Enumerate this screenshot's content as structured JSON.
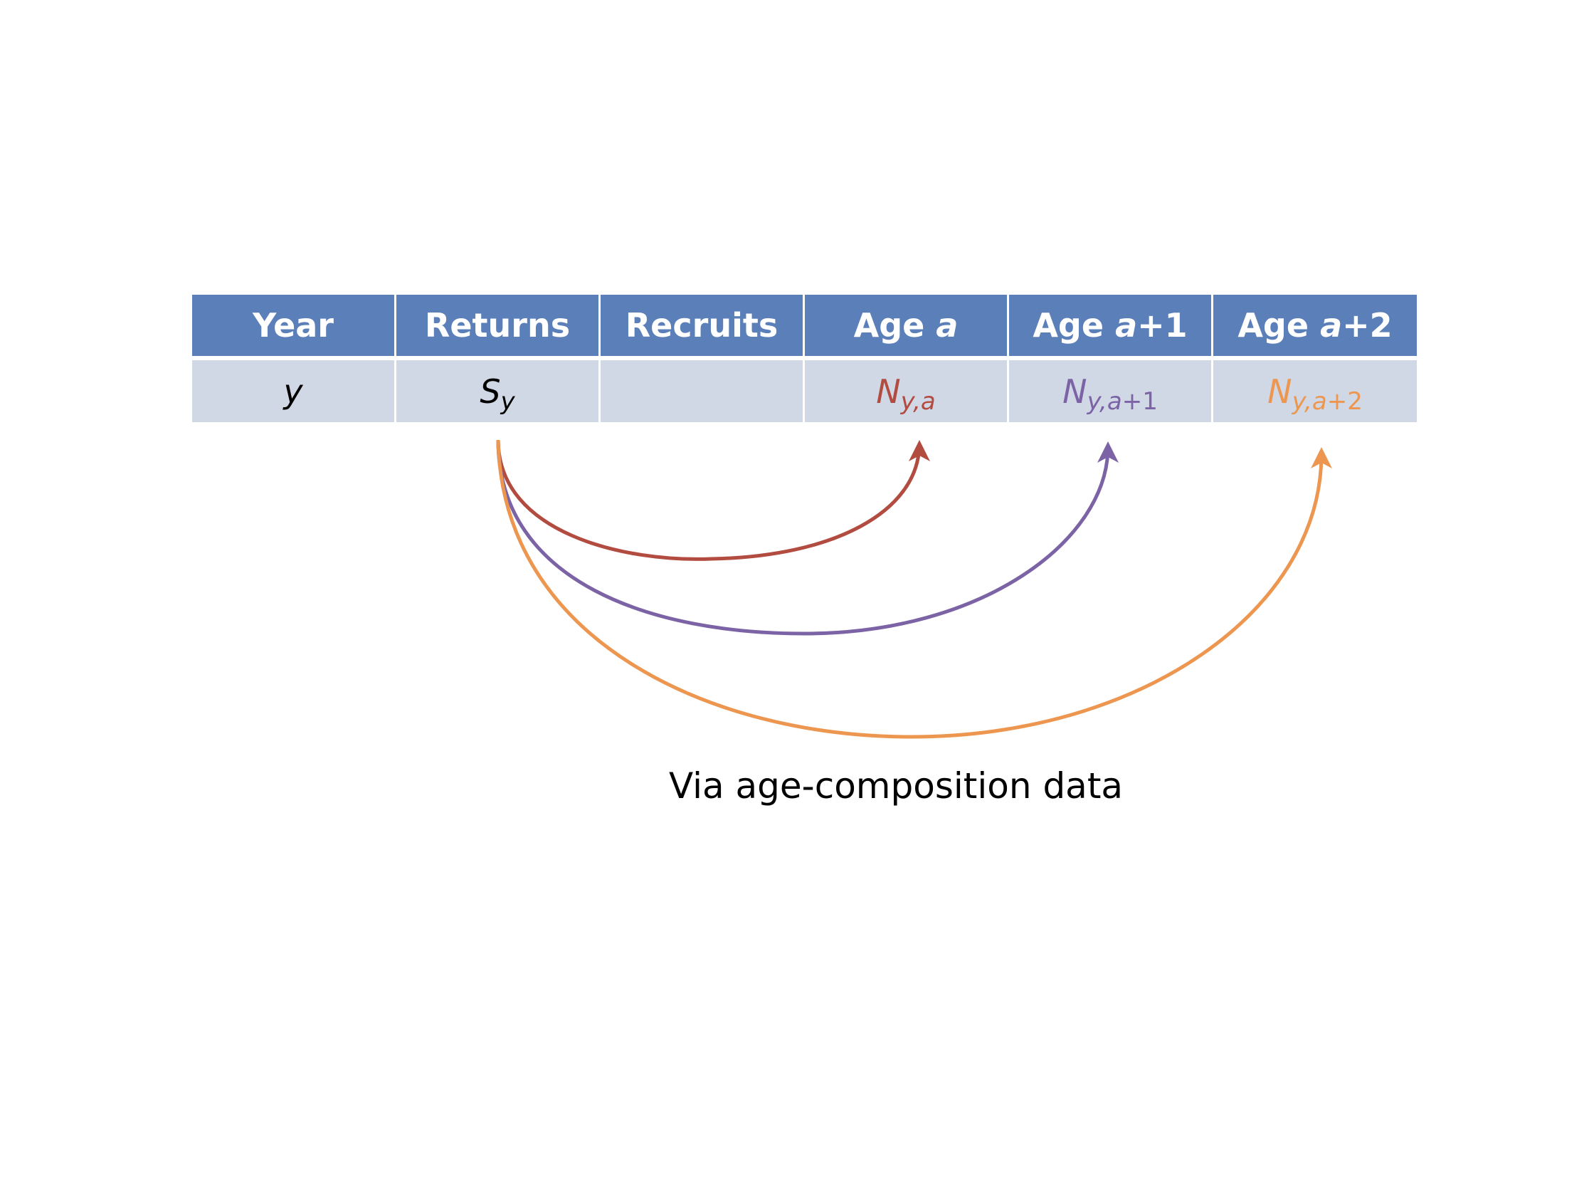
{
  "table": {
    "headers": [
      {
        "prefix": "Year",
        "var": "",
        "suffix": ""
      },
      {
        "prefix": "Returns",
        "var": "",
        "suffix": ""
      },
      {
        "prefix": "Recruits",
        "var": "",
        "suffix": ""
      },
      {
        "prefix": "Age ",
        "var": "a",
        "suffix": ""
      },
      {
        "prefix": "Age ",
        "var": "a",
        "suffix": "+1"
      },
      {
        "prefix": "Age ",
        "var": "a",
        "suffix": "+2"
      }
    ],
    "row": {
      "year": "y",
      "returns": {
        "base": "S",
        "sub": "y"
      },
      "recruits": "",
      "age_a": {
        "base": "N",
        "sub_var": "y,a",
        "sub_suffix": ""
      },
      "age_a1": {
        "base": "N",
        "sub_var": "y,a",
        "sub_suffix": "+1"
      },
      "age_a2": {
        "base": "N",
        "sub_var": "y,a",
        "sub_suffix": "+2"
      }
    }
  },
  "arrows": [
    {
      "target": "age_a",
      "color": "#b34c40"
    },
    {
      "target": "age_a1",
      "color": "#7b63a6"
    },
    {
      "target": "age_a2",
      "color": "#ed9650"
    }
  ],
  "caption": "Via age-composition data"
}
